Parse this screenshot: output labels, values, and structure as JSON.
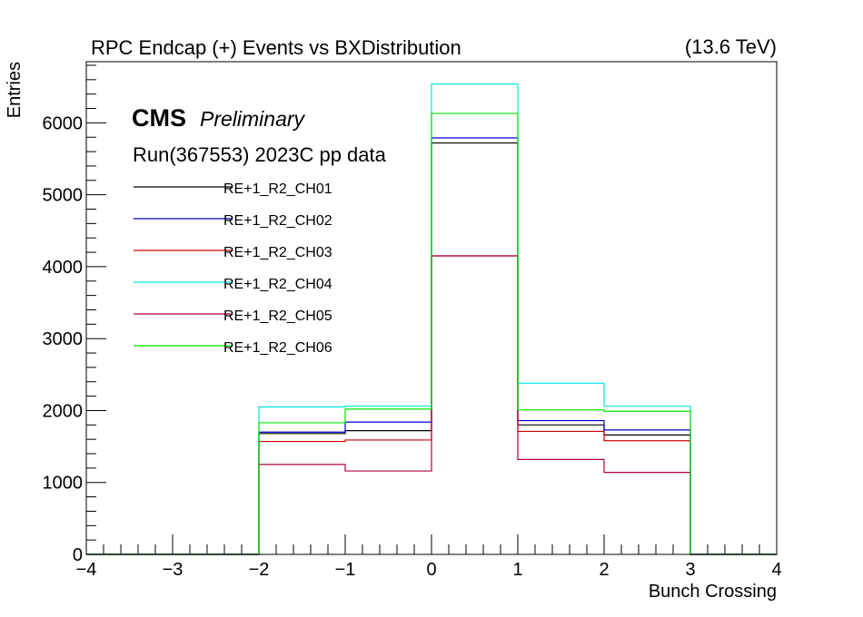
{
  "chart_data": {
    "type": "step-histogram",
    "title": "RPC Endcap (+)  Events vs BXDistribution",
    "energy_label": "(13.6 TeV)",
    "xlabel": "Bunch Crossing",
    "ylabel": "Entries",
    "xlim": [
      -4,
      4
    ],
    "ylim": [
      0,
      6850
    ],
    "x_ticks": [
      -4,
      -3,
      -2,
      -1,
      0,
      1,
      2,
      3,
      4
    ],
    "x_tick_labels": [
      "−4",
      "−3",
      "−2",
      "−1",
      "0",
      "1",
      "2",
      "3",
      "4"
    ],
    "y_ticks": [
      0,
      1000,
      2000,
      3000,
      4000,
      5000,
      6000
    ],
    "y_tick_labels": [
      "0",
      "1000",
      "2000",
      "3000",
      "4000",
      "5000",
      "6000"
    ],
    "bin_edges": [
      -4,
      -3,
      -2,
      -1,
      0,
      1,
      2,
      3,
      4
    ],
    "cms_label": "CMS",
    "preliminary_label": "Preliminary",
    "run_label": "Run(367553) 2023C pp data",
    "legend_position": "top-left",
    "series": [
      {
        "name": "RE+1_R2_CH01",
        "color": "#000000",
        "values": [
          0,
          0,
          1680,
          1720,
          5720,
          1800,
          1660,
          0
        ]
      },
      {
        "name": "RE+1_R2_CH02",
        "color": "#0000cc",
        "values": [
          0,
          0,
          1700,
          1840,
          5790,
          1860,
          1730,
          0
        ]
      },
      {
        "name": "RE+1_R2_CH03",
        "color": "#cc0000",
        "values": [
          0,
          0,
          1570,
          1590,
          4150,
          1710,
          1580,
          0
        ]
      },
      {
        "name": "RE+1_R2_CH04",
        "color": "#00e5e5",
        "values": [
          0,
          0,
          2050,
          2060,
          6540,
          2380,
          2060,
          0
        ]
      },
      {
        "name": "RE+1_R2_CH05",
        "color": "#b3003c",
        "values": [
          0,
          0,
          1250,
          1160,
          4150,
          1320,
          1140,
          0
        ]
      },
      {
        "name": "RE+1_R2_CH06",
        "color": "#00e600",
        "values": [
          0,
          0,
          1830,
          2020,
          6130,
          2010,
          1990,
          0
        ]
      }
    ]
  }
}
